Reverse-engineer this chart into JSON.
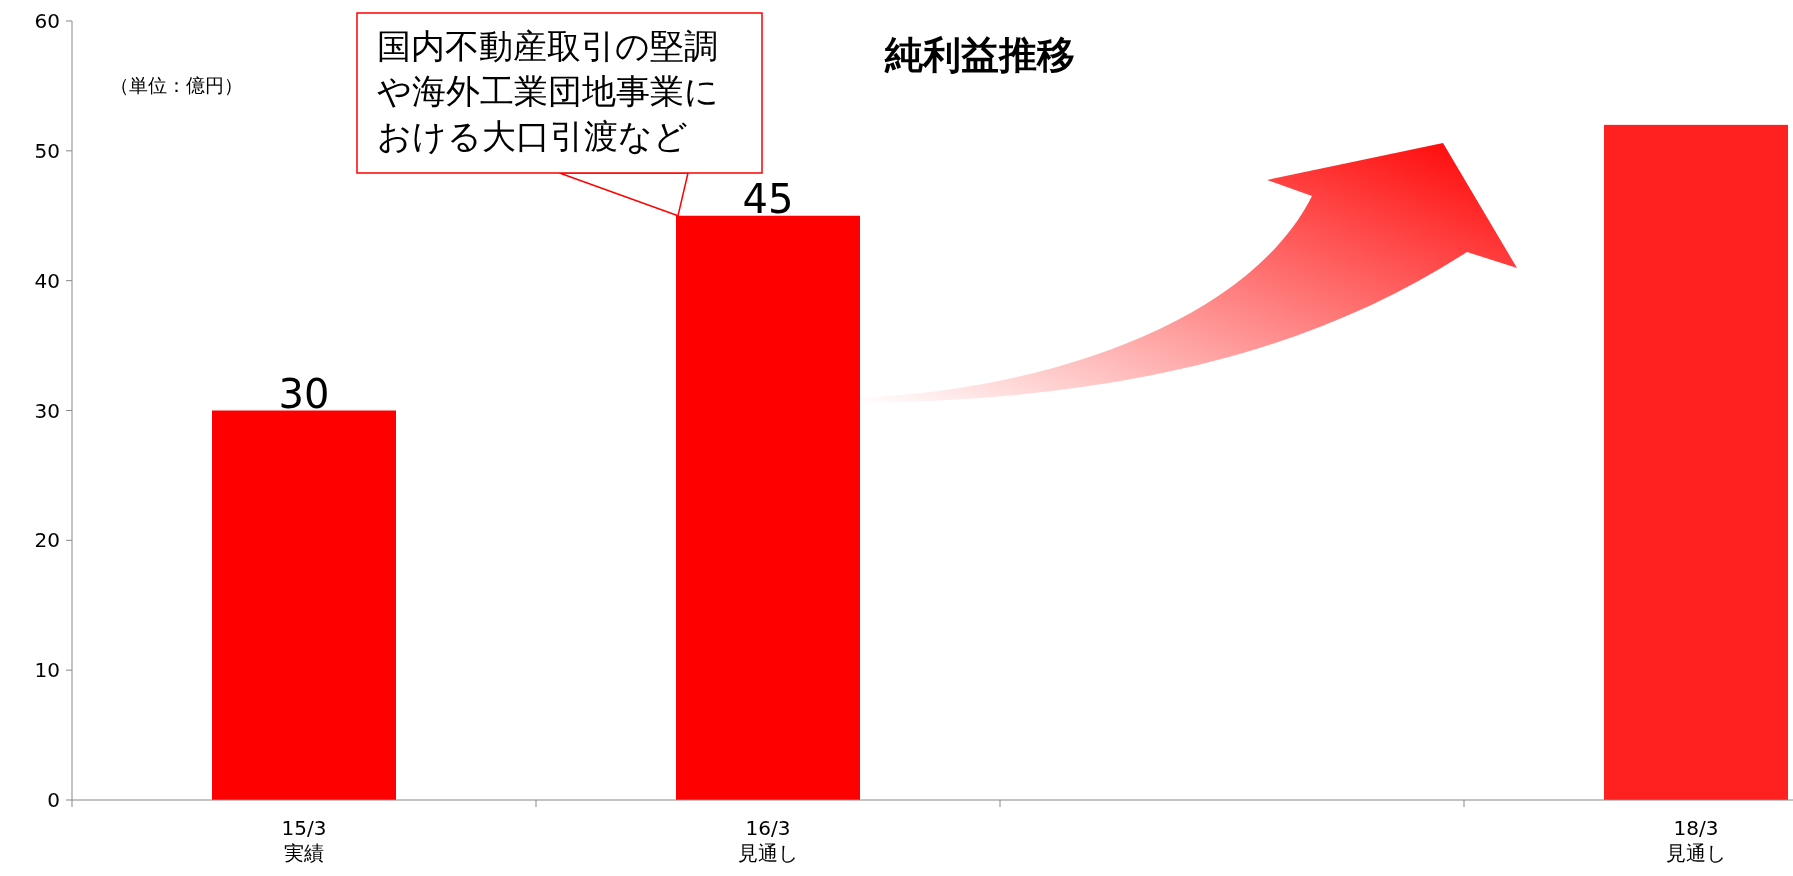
{
  "chart_data": {
    "type": "bar",
    "title": "純利益推移",
    "categories": [
      "15/3\n実績",
      "16/3\n見通し",
      null,
      "18/3\n見通し"
    ],
    "values": [
      30,
      45,
      null,
      52
    ],
    "colors": [
      "#ff0000",
      "#ff0000",
      null,
      "#ff2020"
    ],
    "value_labels": [
      "30",
      "45",
      null,
      null
    ],
    "ylim": [
      0,
      60
    ],
    "yticks": [
      0,
      10,
      20,
      30,
      40,
      50,
      60
    ],
    "grid": false,
    "annotations": [
      "（単位：億円）",
      {
        "text": "国内不動産取引の堅調や海外工業団地事業における大口引渡など",
        "x": "16/3\n見通し",
        "y": 45
      }
    ]
  }
}
